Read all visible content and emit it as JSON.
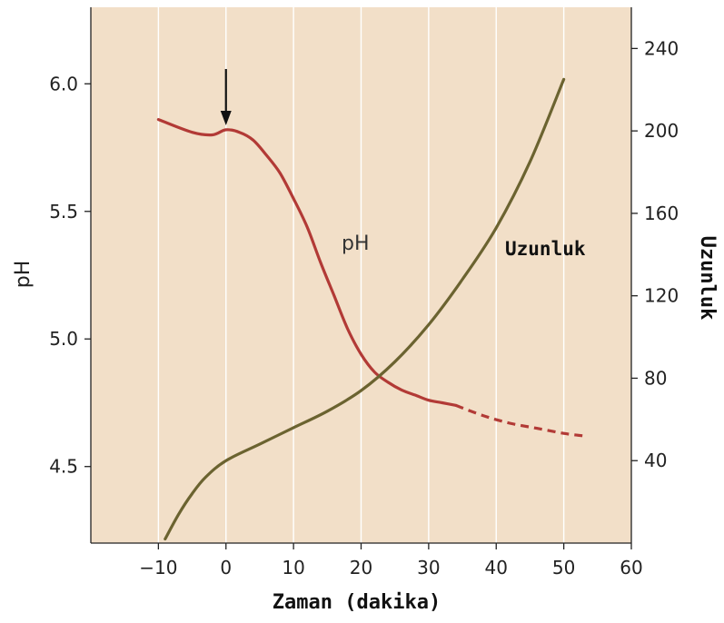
{
  "chart_data": {
    "type": "line",
    "xlabel": "Zaman (dakika)",
    "ylabel_left": "pH",
    "ylabel_right": "Uzunluk",
    "xlim": [
      -20,
      60
    ],
    "ylim_left": [
      4.2,
      6.3
    ],
    "ylim_right": [
      0,
      260
    ],
    "x_ticks": [
      -10,
      0,
      10,
      20,
      30,
      40,
      50,
      60
    ],
    "x_tick_labels": [
      "−10",
      "0",
      "10",
      "20",
      "30",
      "40",
      "50",
      "60"
    ],
    "y_left_ticks": [
      4.5,
      5.0,
      5.5,
      6.0
    ],
    "y_left_tick_labels": [
      "4.5",
      "5.0",
      "5.5",
      "6.0"
    ],
    "y_right_ticks": [
      40,
      80,
      120,
      160,
      200,
      240
    ],
    "y_right_tick_labels": [
      "40",
      "80",
      "120",
      "160",
      "200",
      "240"
    ],
    "grid": "vertical",
    "background_color": "#f2dfc8",
    "series": [
      {
        "name": "pH",
        "axis": "left",
        "color": "#b23a36",
        "x": [
          -10,
          -5,
          -2,
          0,
          2,
          4,
          6,
          8,
          10,
          12,
          14,
          16,
          18,
          20,
          22,
          24,
          26,
          28,
          30,
          32,
          34
        ],
        "y": [
          5.86,
          5.81,
          5.8,
          5.82,
          5.81,
          5.78,
          5.72,
          5.65,
          5.55,
          5.44,
          5.3,
          5.17,
          5.04,
          4.94,
          4.87,
          4.83,
          4.8,
          4.78,
          4.76,
          4.75,
          4.74
        ],
        "dashed_x": [
          34,
          38,
          42,
          46,
          50,
          53
        ],
        "dashed_y": [
          4.74,
          4.7,
          4.67,
          4.65,
          4.63,
          4.62
        ]
      },
      {
        "name": "Uzunluk",
        "axis": "right",
        "color": "#6b6330",
        "x": [
          -9,
          -7,
          -5,
          -3,
          0,
          5,
          10,
          15,
          20,
          25,
          30,
          35,
          40,
          45,
          50
        ],
        "y": [
          2,
          14,
          24,
          32,
          40,
          48,
          56,
          64,
          74,
          88,
          106,
          128,
          153,
          185,
          225
        ]
      }
    ],
    "annotations": [
      {
        "type": "arrow",
        "x": 0,
        "direction": "down"
      }
    ]
  }
}
